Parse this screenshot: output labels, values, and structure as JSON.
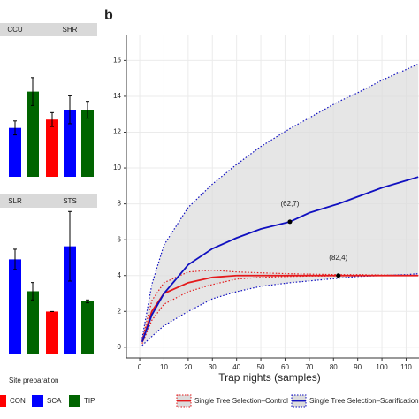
{
  "chart_data": [
    {
      "type": "faceted_bar",
      "legend_title": "Site preparation",
      "groups": [
        {
          "name": "CON",
          "color": "#ff0000"
        },
        {
          "name": "SCA",
          "color": "#0000ff"
        },
        {
          "name": "TIP",
          "color": "#006400"
        }
      ],
      "ylim": [
        0,
        10
      ],
      "panels": [
        {
          "name": "CCU",
          "values": [
            null,
            3.5,
            6.1
          ],
          "errors": [
            null,
            0.5,
            1.0
          ]
        },
        {
          "name": "SHR",
          "values": [
            4.1,
            4.8,
            4.8
          ],
          "errors": [
            0.5,
            1.0,
            0.6
          ]
        },
        {
          "name": "SLR",
          "values": [
            null,
            6.5,
            4.3
          ],
          "errors": [
            null,
            0.7,
            0.6
          ]
        },
        {
          "name": "STS",
          "values": [
            2.9,
            7.4,
            3.6
          ],
          "errors": [
            0,
            2.4,
            0.1
          ]
        }
      ]
    },
    {
      "type": "line",
      "panel_label": "b",
      "xlabel": "Trap nights (samples)",
      "xlim": [
        -5.5,
        115.3
      ],
      "ylim": [
        -0.6,
        17.4
      ],
      "xticks": [
        0,
        10,
        20,
        30,
        40,
        50,
        60,
        70,
        80,
        90,
        100,
        110
      ],
      "yticks": [
        0,
        2,
        4,
        6,
        8,
        10,
        12,
        14,
        16
      ],
      "grid": true,
      "band_color": "#dcdcdc",
      "x": [
        1,
        5,
        10,
        20,
        30,
        40,
        50,
        62,
        70,
        82,
        90,
        100,
        110,
        115
      ],
      "series": [
        {
          "name": "Single Tree Selection–Control",
          "color": "#e41a1c",
          "values": [
            0.3,
            2.0,
            3.0,
            3.6,
            3.9,
            4.0,
            4.0,
            4.0,
            4.0,
            4.0,
            4.0,
            4.0,
            4.0,
            4.0
          ],
          "upper": [
            0.4,
            2.6,
            3.6,
            4.2,
            4.3,
            4.2,
            4.15,
            4.1,
            4.08,
            4.05,
            4.05,
            4.03,
            4.02,
            4.02
          ],
          "lower": [
            0.2,
            1.5,
            2.4,
            3.1,
            3.5,
            3.8,
            3.9,
            3.95,
            3.97,
            3.98,
            3.99,
            4.0,
            4.0,
            4.0
          ]
        },
        {
          "name": "Single Tree Selection–Scarification",
          "color": "#1010c0",
          "values": [
            0.3,
            1.8,
            3.0,
            4.6,
            5.5,
            6.1,
            6.6,
            7.0,
            7.5,
            8.0,
            8.4,
            8.9,
            9.3,
            9.5
          ],
          "upper": [
            0.5,
            3.5,
            5.7,
            7.8,
            9.1,
            10.2,
            11.2,
            12.2,
            12.8,
            13.7,
            14.2,
            14.9,
            15.5,
            15.8
          ],
          "lower": [
            0.1,
            0.6,
            1.2,
            2.0,
            2.7,
            3.1,
            3.4,
            3.6,
            3.7,
            3.85,
            3.95,
            4.0,
            4.05,
            4.1
          ]
        }
      ],
      "annotations": [
        {
          "label": "(62,7)",
          "x": 62,
          "y": 7
        },
        {
          "label": "(82,4)",
          "x": 82,
          "y": 4
        }
      ]
    }
  ]
}
